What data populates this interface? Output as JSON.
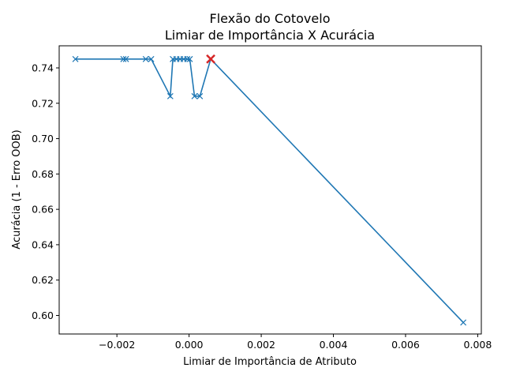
{
  "chart_data": {
    "type": "line",
    "title": "Flexão do Cotovelo",
    "subtitle": "Limiar de Importância X Acurácia",
    "xlabel": "Limiar de Importância de Atributo",
    "ylabel": "Acurácia (1 - Erro OOB)",
    "xlim": [
      -0.0036,
      0.0081
    ],
    "ylim": [
      0.5895,
      0.7525
    ],
    "xticks": [
      -0.002,
      0.0,
      0.002,
      0.004,
      0.006,
      0.008
    ],
    "xtick_labels": [
      "−0.002",
      "0.000",
      "0.002",
      "0.004",
      "0.006",
      "0.008"
    ],
    "yticks": [
      0.6,
      0.62,
      0.64,
      0.66,
      0.68,
      0.7,
      0.72,
      0.74
    ],
    "ytick_labels": [
      "0.60",
      "0.62",
      "0.64",
      "0.66",
      "0.68",
      "0.70",
      "0.72",
      "0.74"
    ],
    "grid": false,
    "series": [
      {
        "color": "#1f77b4",
        "marker": "x",
        "x": [
          -0.00315,
          -0.00182,
          -0.00175,
          -0.0012,
          -0.00105,
          -0.00052,
          -0.00045,
          -0.00035,
          -0.00025,
          -0.00015,
          -5e-05,
          2e-05,
          0.00015,
          0.0003,
          0.0006,
          0.0076
        ],
        "y": [
          0.745,
          0.745,
          0.745,
          0.745,
          0.745,
          0.724,
          0.745,
          0.745,
          0.745,
          0.745,
          0.745,
          0.745,
          0.724,
          0.724,
          0.745,
          0.596
        ]
      }
    ],
    "highlight": {
      "x": 0.0006,
      "y": 0.745,
      "color": "#d62728",
      "marker": "x"
    }
  }
}
